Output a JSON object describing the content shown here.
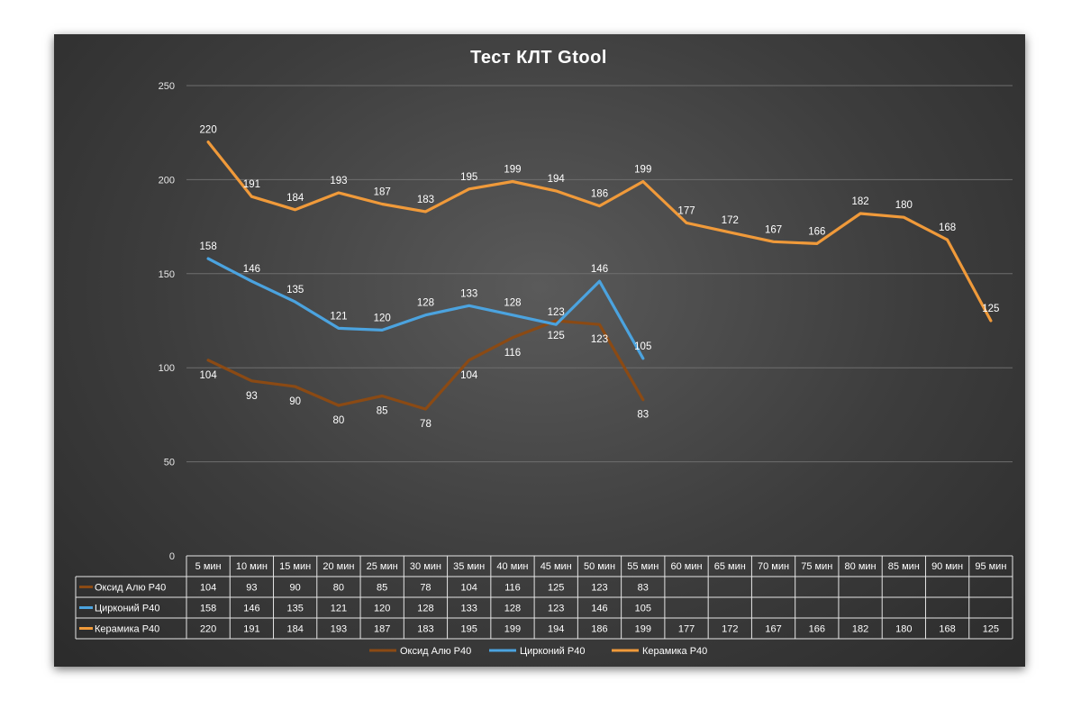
{
  "chart_data": {
    "type": "line",
    "title": "Тест КЛТ Gtool",
    "categories": [
      "5 мин",
      "10 мин",
      "15 мин",
      "20 мин",
      "25 мин",
      "30 мин",
      "35 мин",
      "40 мин",
      "45 мин",
      "50 мин",
      "55 мин",
      "60 мин",
      "65 мин",
      "70 мин",
      "75 мин",
      "80 мин",
      "85 мин",
      "90 мин",
      "95 мин"
    ],
    "series": [
      {
        "name": "Оксид Алю P40",
        "color": "#8B4A14",
        "values": [
          104,
          93,
          90,
          80,
          85,
          78,
          104,
          116,
          125,
          123,
          83,
          null,
          null,
          null,
          null,
          null,
          null,
          null,
          null
        ]
      },
      {
        "name": "Цирконий P40",
        "color": "#4BA3DF",
        "values": [
          158,
          146,
          135,
          121,
          120,
          128,
          133,
          128,
          123,
          146,
          105,
          null,
          null,
          null,
          null,
          null,
          null,
          null,
          null
        ]
      },
      {
        "name": "Керамика P40",
        "color": "#F09A3A",
        "values": [
          220,
          191,
          184,
          193,
          187,
          183,
          195,
          199,
          194,
          186,
          199,
          177,
          172,
          167,
          166,
          182,
          180,
          168,
          125
        ]
      }
    ],
    "yticks": [
      "0",
      "50",
      "100",
      "150",
      "200",
      "250"
    ],
    "ylim": [
      0,
      250
    ],
    "grid": true,
    "legend": "bottom",
    "data_table": true
  }
}
